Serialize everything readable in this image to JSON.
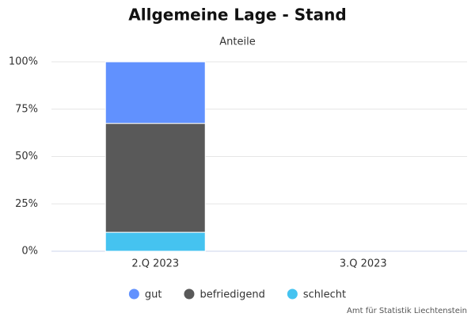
{
  "chart_data": {
    "type": "stacked_bar",
    "title": "Allgemeine Lage - Stand",
    "subtitle": "Anteile",
    "categories": [
      "2.Q 2023",
      "3.Q 2023"
    ],
    "series": [
      {
        "name": "gut",
        "color": "#6191fe",
        "values": [
          32.5,
          null
        ]
      },
      {
        "name": "befriedigend",
        "color": "#595959",
        "values": [
          57.5,
          null
        ]
      },
      {
        "name": "schlecht",
        "color": "#45c3f0",
        "values": [
          10,
          null
        ]
      }
    ],
    "ylim": [
      0,
      100
    ],
    "yticks": [
      {
        "value": 0,
        "label": "0%"
      },
      {
        "value": 25,
        "label": "25%"
      },
      {
        "value": 50,
        "label": "50%"
      },
      {
        "value": 75,
        "label": "75%"
      },
      {
        "value": 100,
        "label": "100%"
      }
    ],
    "grid": true,
    "legend": "bottom",
    "credit": "Amt für Statistik Liechtenstein"
  }
}
